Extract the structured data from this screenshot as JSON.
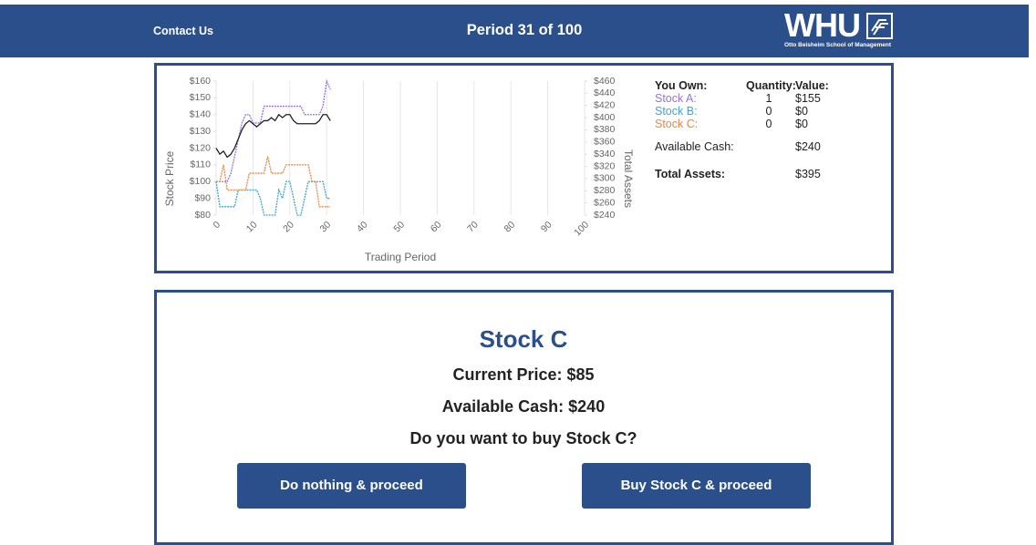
{
  "header": {
    "contact": "Contact Us",
    "period": "Period 31 of 100",
    "logo_text": "WHU",
    "logo_subtitle": "Otto Beisheim School of Management"
  },
  "chart_data": {
    "type": "line",
    "x": [
      0,
      1,
      2,
      3,
      4,
      5,
      6,
      7,
      8,
      9,
      10,
      11,
      12,
      13,
      14,
      15,
      16,
      17,
      18,
      19,
      20,
      21,
      22,
      23,
      24,
      25,
      26,
      27,
      28,
      29,
      30,
      31
    ],
    "series": [
      {
        "name": "Stock A",
        "color": "#9b6fe0",
        "values": [
          100,
          100,
          100,
          100,
          105,
          115,
          125,
          135,
          140,
          140,
          135,
          135,
          135,
          145,
          145,
          145,
          145,
          145,
          145,
          145,
          145,
          145,
          145,
          145,
          140,
          140,
          140,
          140,
          140,
          145,
          160,
          155
        ]
      },
      {
        "name": "Stock B",
        "color": "#3ba5dc",
        "values": [
          100,
          85,
          85,
          85,
          85,
          85,
          95,
          95,
          95,
          95,
          95,
          95,
          90,
          80,
          80,
          80,
          80,
          95,
          90,
          100,
          100,
          90,
          80,
          80,
          90,
          100,
          100,
          100,
          100,
          100,
          90,
          90
        ]
      },
      {
        "name": "Stock C",
        "color": "#ee8540",
        "values": [
          100,
          100,
          110,
          95,
          95,
          95,
          95,
          95,
          95,
          105,
          105,
          105,
          105,
          105,
          115,
          105,
          105,
          105,
          105,
          110,
          110,
          110,
          110,
          110,
          110,
          110,
          100,
          100,
          85,
          85,
          85,
          85
        ]
      },
      {
        "name": "Total Assets",
        "color": "#222222",
        "axis": "y2",
        "values": [
          350,
          340,
          345,
          335,
          340,
          350,
          365,
          380,
          390,
          395,
          390,
          385,
          390,
          395,
          395,
          400,
          395,
          405,
          400,
          405,
          405,
          395,
          390,
          390,
          390,
          390,
          390,
          390,
          395,
          405,
          405,
          395
        ]
      }
    ],
    "xlabel": "Trading Period",
    "ylabel": "Stock Price",
    "y2label": "Total Assets",
    "xlim": [
      0,
      100
    ],
    "xticks": [
      0,
      10,
      20,
      30,
      40,
      50,
      60,
      70,
      80,
      90,
      100
    ],
    "ylim": [
      80,
      160
    ],
    "yticks": [
      {
        "value": 80,
        "label": "$80"
      },
      {
        "value": 90,
        "label": "$90"
      },
      {
        "value": 100,
        "label": "$100"
      },
      {
        "value": 110,
        "label": "$110"
      },
      {
        "value": 120,
        "label": "$120"
      },
      {
        "value": 130,
        "label": "$130"
      },
      {
        "value": 140,
        "label": "$140"
      },
      {
        "value": 150,
        "label": "$150"
      },
      {
        "value": 160,
        "label": "$160"
      }
    ],
    "y2lim": [
      240,
      460
    ],
    "y2ticks": [
      {
        "value": 240,
        "label": "$240"
      },
      {
        "value": 260,
        "label": "$260"
      },
      {
        "value": 280,
        "label": "$280"
      },
      {
        "value": 300,
        "label": "$300"
      },
      {
        "value": 320,
        "label": "$320"
      },
      {
        "value": 340,
        "label": "$340"
      },
      {
        "value": 360,
        "label": "$360"
      },
      {
        "value": 380,
        "label": "$380"
      },
      {
        "value": 400,
        "label": "$400"
      },
      {
        "value": 420,
        "label": "$420"
      },
      {
        "value": 440,
        "label": "$440"
      },
      {
        "value": 460,
        "label": "$460"
      }
    ],
    "grid": "x"
  },
  "holdings": {
    "headers": [
      "You Own:",
      "Quantity:",
      "Value:"
    ],
    "rows": [
      {
        "label": "Stock A:",
        "quantity": 1,
        "value": "$155"
      },
      {
        "label": "Stock B:",
        "quantity": 0,
        "value": "$0"
      },
      {
        "label": "Stock C:",
        "quantity": 0,
        "value": "$0"
      }
    ],
    "cash": {
      "label": "Available Cash:",
      "value": "$240"
    },
    "total": {
      "label": "Total Assets:",
      "value": "$395"
    }
  },
  "decision": {
    "title": "Stock C",
    "price": "Current Price: $85",
    "cash": "Available Cash: $240",
    "question": "Do you want to buy Stock C?",
    "buttons": [
      "Do nothing & proceed",
      "Buy Stock C & proceed"
    ]
  }
}
